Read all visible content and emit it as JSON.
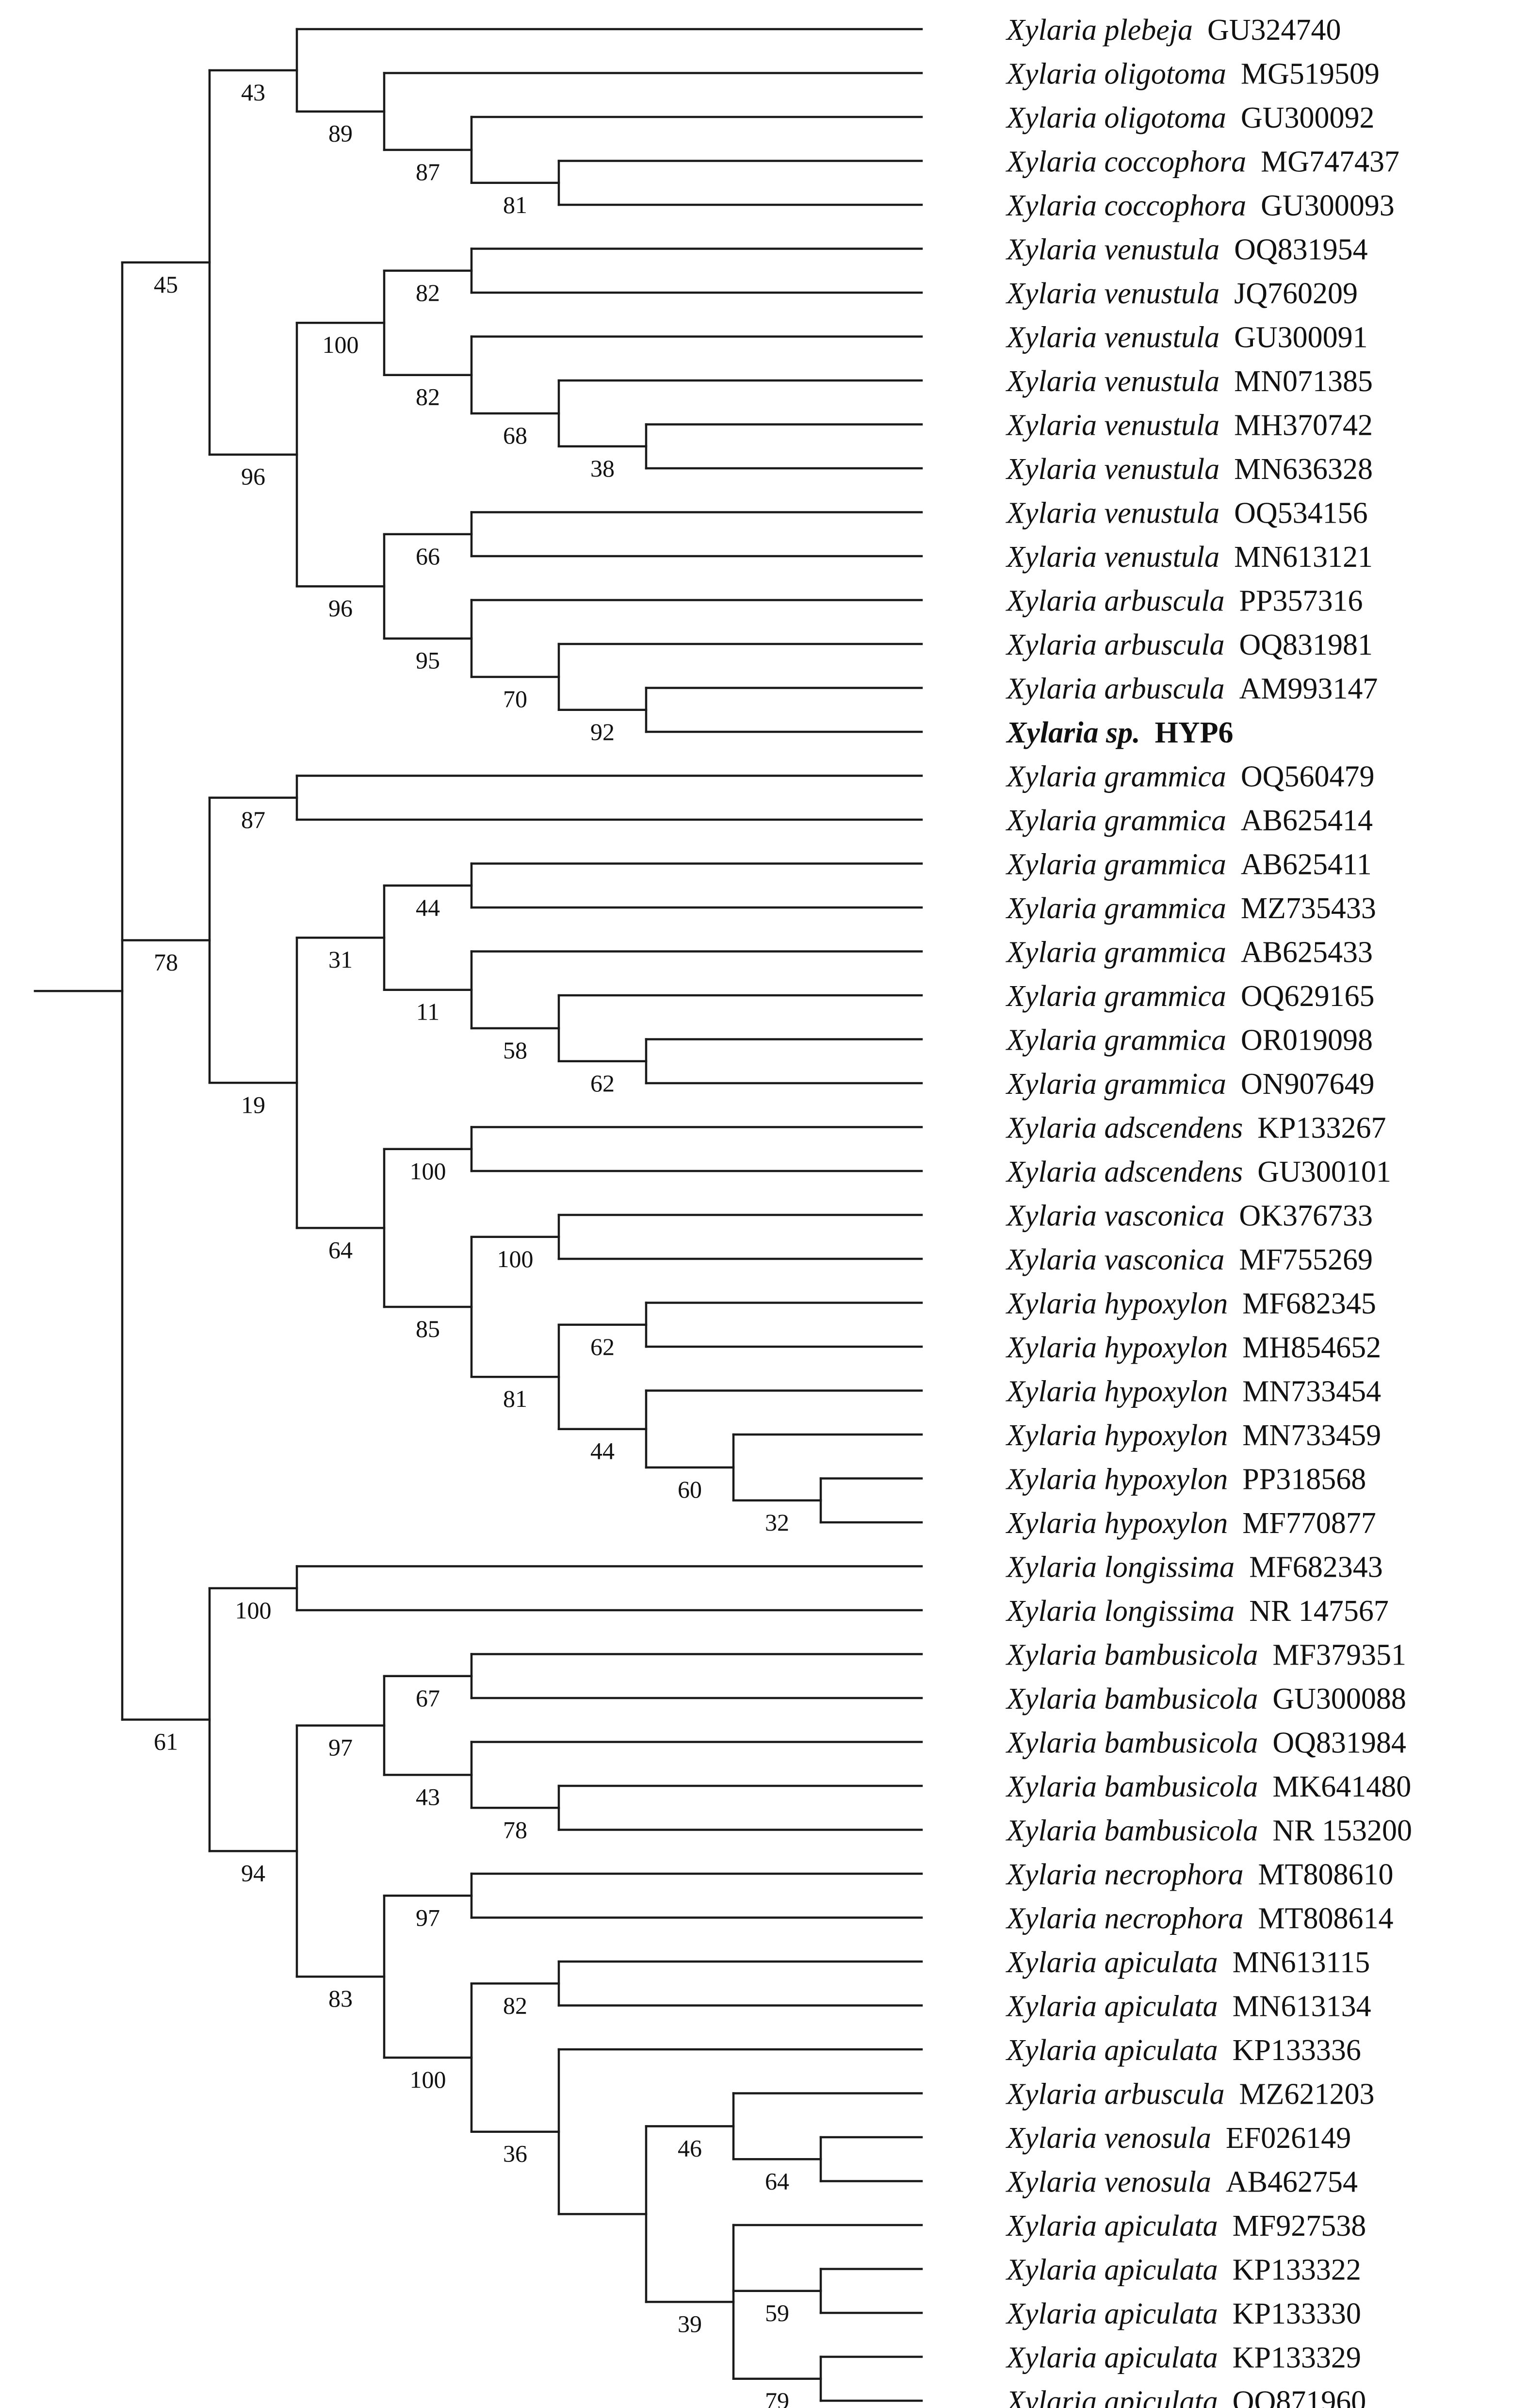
{
  "figure": {
    "type": "phylogenetic-tree",
    "highlighted_taxon": "Xylaria sp. HYP6"
  },
  "taxa": [
    {
      "species": "Xylaria plebeja",
      "accession": "GU324740"
    },
    {
      "species": "Xylaria oligotoma",
      "accession": "MG519509"
    },
    {
      "species": "Xylaria oligotoma",
      "accession": "GU300092"
    },
    {
      "species": "Xylaria coccophora",
      "accession": "MG747437"
    },
    {
      "species": "Xylaria coccophora",
      "accession": "GU300093"
    },
    {
      "species": "Xylaria venustula",
      "accession": "OQ831954"
    },
    {
      "species": "Xylaria venustula",
      "accession": "JQ760209"
    },
    {
      "species": "Xylaria venustula",
      "accession": "GU300091"
    },
    {
      "species": "Xylaria venustula",
      "accession": "MN071385"
    },
    {
      "species": "Xylaria venustula",
      "accession": "MH370742"
    },
    {
      "species": "Xylaria venustula",
      "accession": "MN636328"
    },
    {
      "species": "Xylaria venustula",
      "accession": "OQ534156"
    },
    {
      "species": "Xylaria venustula",
      "accession": "MN613121"
    },
    {
      "species": "Xylaria arbuscula",
      "accession": "PP357316"
    },
    {
      "species": "Xylaria arbuscula",
      "accession": "OQ831981"
    },
    {
      "species": "Xylaria arbuscula",
      "accession": "AM993147"
    },
    {
      "species": "Xylaria sp.",
      "accession": "HYP6",
      "highlight": true
    },
    {
      "species": "Xylaria grammica",
      "accession": "OQ560479"
    },
    {
      "species": "Xylaria grammica",
      "accession": "AB625414"
    },
    {
      "species": "Xylaria grammica",
      "accession": "AB625411"
    },
    {
      "species": "Xylaria grammica",
      "accession": "MZ735433"
    },
    {
      "species": "Xylaria grammica",
      "accession": "AB625433"
    },
    {
      "species": "Xylaria grammica",
      "accession": "OQ629165"
    },
    {
      "species": "Xylaria grammica",
      "accession": "OR019098"
    },
    {
      "species": "Xylaria grammica",
      "accession": "ON907649"
    },
    {
      "species": "Xylaria adscendens",
      "accession": "KP133267"
    },
    {
      "species": "Xylaria adscendens",
      "accession": "GU300101"
    },
    {
      "species": "Xylaria vasconica",
      "accession": "OK376733"
    },
    {
      "species": "Xylaria vasconica",
      "accession": "MF755269"
    },
    {
      "species": "Xylaria hypoxylon",
      "accession": "MF682345"
    },
    {
      "species": "Xylaria hypoxylon",
      "accession": "MH854652"
    },
    {
      "species": "Xylaria hypoxylon",
      "accession": "MN733454"
    },
    {
      "species": "Xylaria hypoxylon",
      "accession": "MN733459"
    },
    {
      "species": "Xylaria hypoxylon",
      "accession": "PP318568"
    },
    {
      "species": "Xylaria hypoxylon",
      "accession": "MF770877"
    },
    {
      "species": "Xylaria longissima",
      "accession": "MF682343"
    },
    {
      "species": "Xylaria longissima",
      "accession": "NR 147567"
    },
    {
      "species": "Xylaria bambusicola",
      "accession": "MF379351"
    },
    {
      "species": "Xylaria bambusicola",
      "accession": "GU300088"
    },
    {
      "species": "Xylaria bambusicola",
      "accession": "OQ831984"
    },
    {
      "species": "Xylaria bambusicola",
      "accession": "MK641480"
    },
    {
      "species": "Xylaria bambusicola",
      "accession": "NR 153200"
    },
    {
      "species": "Xylaria necrophora",
      "accession": "MT808610"
    },
    {
      "species": "Xylaria necrophora",
      "accession": "MT808614"
    },
    {
      "species": "Xylaria apiculata",
      "accession": "MN613115"
    },
    {
      "species": "Xylaria apiculata",
      "accession": "MN613134"
    },
    {
      "species": "Xylaria apiculata",
      "accession": "KP133336"
    },
    {
      "species": "Xylaria arbuscula",
      "accession": "MZ621203"
    },
    {
      "species": "Xylaria venosula",
      "accession": "EF026149"
    },
    {
      "species": "Xylaria venosula",
      "accession": "AB462754"
    },
    {
      "species": "Xylaria apiculata",
      "accession": "MF927538"
    },
    {
      "species": "Xylaria apiculata",
      "accession": "KP133322"
    },
    {
      "species": "Xylaria apiculata",
      "accession": "KP133330"
    },
    {
      "species": "Xylaria apiculata",
      "accession": "KP133329"
    },
    {
      "species": "Xylaria apiculata",
      "accession": "OQ871960"
    }
  ],
  "tree": {
    "c": [
      {
        "s": "45",
        "c": [
          {
            "s": "43",
            "c": [
              0,
              {
                "s": "89",
                "c": [
                  1,
                  {
                    "s": "87",
                    "c": [
                      2,
                      {
                        "s": "81",
                        "c": [
                          3,
                          4
                        ]
                      }
                    ]
                  }
                ]
              }
            ]
          },
          {
            "s": "96",
            "c": [
              {
                "s": "100",
                "c": [
                  {
                    "s": "82",
                    "c": [
                      5,
                      6
                    ]
                  },
                  {
                    "s": "82",
                    "c": [
                      7,
                      {
                        "s": "68",
                        "c": [
                          8,
                          {
                            "s": "38",
                            "c": [
                              9,
                              10
                            ]
                          }
                        ]
                      }
                    ]
                  }
                ]
              },
              {
                "s": "96",
                "c": [
                  {
                    "s": "66",
                    "c": [
                      11,
                      12
                    ]
                  },
                  {
                    "s": "95",
                    "c": [
                      13,
                      {
                        "s": "70",
                        "c": [
                          14,
                          {
                            "s": "92",
                            "c": [
                              15,
                              16
                            ]
                          }
                        ]
                      }
                    ]
                  }
                ]
              }
            ]
          }
        ]
      },
      {
        "s": "78",
        "c": [
          {
            "s": "87",
            "c": [
              17,
              18
            ]
          },
          {
            "s": "19",
            "c": [
              {
                "s": "31",
                "c": [
                  {
                    "s": "44",
                    "c": [
                      19,
                      20
                    ]
                  },
                  {
                    "s": "11",
                    "c": [
                      21,
                      {
                        "s": "58",
                        "c": [
                          22,
                          {
                            "s": "62",
                            "c": [
                              23,
                              24
                            ]
                          }
                        ]
                      }
                    ]
                  }
                ]
              },
              {
                "s": "64",
                "c": [
                  {
                    "s": "100",
                    "c": [
                      25,
                      26
                    ]
                  },
                  {
                    "s": "85",
                    "c": [
                      {
                        "s": "100",
                        "c": [
                          27,
                          28
                        ]
                      },
                      {
                        "s": "81",
                        "c": [
                          {
                            "s": "62",
                            "c": [
                              29,
                              30
                            ]
                          },
                          {
                            "s": "44",
                            "c": [
                              31,
                              {
                                "s": "60",
                                "c": [
                                  32,
                                  {
                                    "s": "32",
                                    "c": [
                                      33,
                                      34
                                    ]
                                  }
                                ]
                              }
                            ]
                          }
                        ]
                      }
                    ]
                  }
                ]
              }
            ]
          }
        ]
      },
      {
        "s": "61",
        "c": [
          {
            "s": "100",
            "c": [
              35,
              36
            ]
          },
          {
            "s": "94",
            "c": [
              {
                "s": "97",
                "c": [
                  {
                    "s": "67",
                    "c": [
                      37,
                      38
                    ]
                  },
                  {
                    "s": "43",
                    "c": [
                      39,
                      {
                        "s": "78",
                        "c": [
                          40,
                          41
                        ]
                      }
                    ]
                  }
                ]
              },
              {
                "s": "83",
                "c": [
                  {
                    "s": "97",
                    "c": [
                      42,
                      43
                    ]
                  },
                  {
                    "s": "100",
                    "c": [
                      {
                        "s": "82",
                        "c": [
                          44,
                          45
                        ]
                      },
                      {
                        "s": "36",
                        "c": [
                          46,
                          {
                            "s": "",
                            "c": [
                              {
                                "s": "46",
                                "c": [
                                  47,
                                  {
                                    "s": "64",
                                    "c": [
                                      48,
                                      49
                                    ]
                                  }
                                ]
                              },
                              {
                                "s": "39",
                                "c": [
                                  50,
                                  {
                                    "s": "59",
                                    "c": [
                                      51,
                                      52
                                    ]
                                  },
                                  {
                                    "s": "79",
                                    "c": [
                                      53,
                                      54
                                    ]
                                  }
                                ]
                              }
                            ]
                          }
                        ]
                      }
                    ]
                  }
                ]
              }
            ]
          }
        ]
      }
    ]
  }
}
